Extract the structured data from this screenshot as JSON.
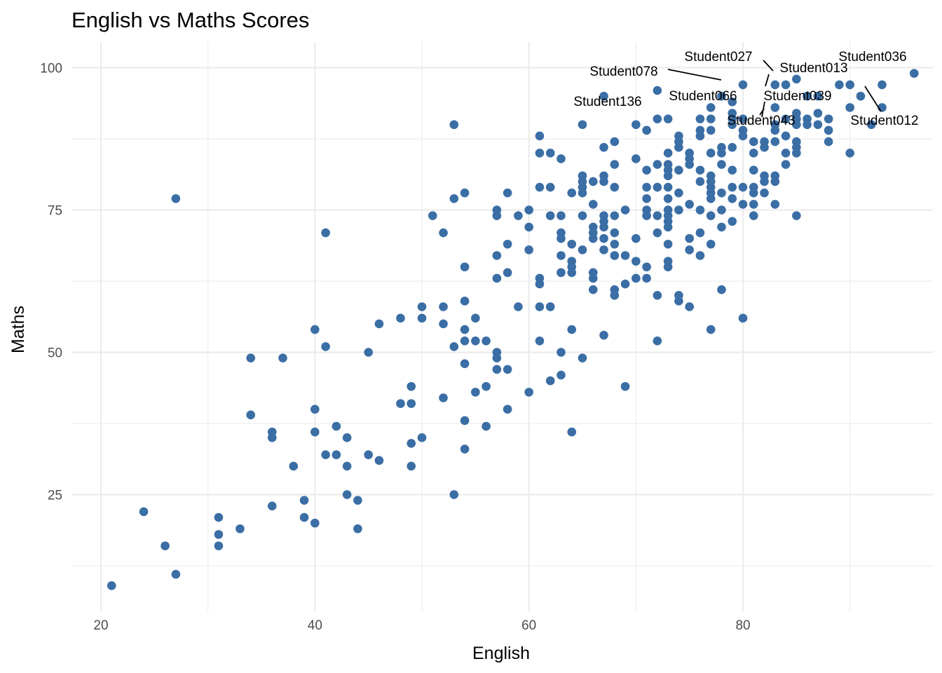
{
  "chart_data": {
    "type": "scatter",
    "title": "English vs Maths Scores",
    "xlabel": "English",
    "ylabel": "Maths",
    "xlim": [
      17.25,
      97.75
    ],
    "ylim": [
      4.5,
      104.5
    ],
    "x_ticks": [
      20,
      40,
      60,
      80
    ],
    "y_ticks": [
      25,
      50,
      75,
      100
    ],
    "grid": true,
    "point_color": "#3A6EA5",
    "points": [
      [
        21,
        9
      ],
      [
        24,
        22
      ],
      [
        26,
        16
      ],
      [
        27,
        77
      ],
      [
        27,
        11
      ],
      [
        31,
        21
      ],
      [
        31,
        18
      ],
      [
        31,
        16
      ],
      [
        33,
        19
      ],
      [
        34,
        49
      ],
      [
        34,
        39
      ],
      [
        36,
        36
      ],
      [
        36,
        35
      ],
      [
        36,
        23
      ],
      [
        37,
        49
      ],
      [
        38,
        30
      ],
      [
        39,
        24
      ],
      [
        39,
        21
      ],
      [
        40,
        54
      ],
      [
        40,
        40
      ],
      [
        40,
        36
      ],
      [
        40,
        20
      ],
      [
        41,
        71
      ],
      [
        41,
        51
      ],
      [
        41,
        32
      ],
      [
        42,
        37
      ],
      [
        42,
        32
      ],
      [
        43,
        35
      ],
      [
        43,
        30
      ],
      [
        43,
        25
      ],
      [
        44,
        24
      ],
      [
        44,
        19
      ],
      [
        45,
        50
      ],
      [
        45,
        32
      ],
      [
        46,
        55
      ],
      [
        46,
        31
      ],
      [
        48,
        56
      ],
      [
        48,
        41
      ],
      [
        49,
        44
      ],
      [
        49,
        41
      ],
      [
        49,
        34
      ],
      [
        49,
        30
      ],
      [
        50,
        58
      ],
      [
        50,
        56
      ],
      [
        50,
        35
      ],
      [
        51,
        74
      ],
      [
        52,
        71
      ],
      [
        52,
        58
      ],
      [
        52,
        55
      ],
      [
        52,
        42
      ],
      [
        53,
        90
      ],
      [
        53,
        77
      ],
      [
        53,
        51
      ],
      [
        53,
        25
      ],
      [
        54,
        78
      ],
      [
        54,
        65
      ],
      [
        54,
        59
      ],
      [
        54,
        54
      ],
      [
        54,
        52
      ],
      [
        54,
        48
      ],
      [
        54,
        38
      ],
      [
        54,
        33
      ],
      [
        55,
        56
      ],
      [
        55,
        52
      ],
      [
        55,
        43
      ],
      [
        56,
        52
      ],
      [
        56,
        44
      ],
      [
        56,
        37
      ],
      [
        57,
        75
      ],
      [
        57,
        74
      ],
      [
        57,
        67
      ],
      [
        57,
        63
      ],
      [
        57,
        50
      ],
      [
        57,
        49
      ],
      [
        57,
        47
      ],
      [
        58,
        78
      ],
      [
        58,
        69
      ],
      [
        58,
        64
      ],
      [
        58,
        47
      ],
      [
        58,
        40
      ],
      [
        59,
        74
      ],
      [
        59,
        58
      ],
      [
        60,
        75
      ],
      [
        60,
        72
      ],
      [
        60,
        68
      ],
      [
        60,
        43
      ],
      [
        61,
        88
      ],
      [
        61,
        85
      ],
      [
        61,
        79
      ],
      [
        61,
        63
      ],
      [
        61,
        62
      ],
      [
        61,
        58
      ],
      [
        61,
        52
      ],
      [
        62,
        85
      ],
      [
        62,
        79
      ],
      [
        62,
        74
      ],
      [
        62,
        58
      ],
      [
        62,
        45
      ],
      [
        63,
        84
      ],
      [
        63,
        74
      ],
      [
        63,
        71
      ],
      [
        63,
        70
      ],
      [
        63,
        67
      ],
      [
        63,
        64
      ],
      [
        63,
        50
      ],
      [
        63,
        46
      ],
      [
        64,
        78
      ],
      [
        64,
        69
      ],
      [
        64,
        66
      ],
      [
        64,
        65
      ],
      [
        64,
        64
      ],
      [
        64,
        54
      ],
      [
        64,
        36
      ],
      [
        65,
        90
      ],
      [
        65,
        81
      ],
      [
        65,
        80
      ],
      [
        65,
        79
      ],
      [
        65,
        78
      ],
      [
        65,
        74
      ],
      [
        65,
        68
      ],
      [
        65,
        49
      ],
      [
        66,
        80
      ],
      [
        66,
        76
      ],
      [
        66,
        72
      ],
      [
        66,
        71
      ],
      [
        66,
        70
      ],
      [
        66,
        64
      ],
      [
        66,
        63
      ],
      [
        66,
        61
      ],
      [
        67,
        95
      ],
      [
        67,
        86
      ],
      [
        67,
        81
      ],
      [
        67,
        80
      ],
      [
        67,
        74
      ],
      [
        67,
        73
      ],
      [
        67,
        72
      ],
      [
        67,
        70
      ],
      [
        67,
        68
      ],
      [
        67,
        53
      ],
      [
        68,
        87
      ],
      [
        68,
        83
      ],
      [
        68,
        79
      ],
      [
        68,
        74
      ],
      [
        68,
        71
      ],
      [
        68,
        69
      ],
      [
        68,
        67
      ],
      [
        68,
        61
      ],
      [
        68,
        60
      ],
      [
        69,
        75
      ],
      [
        69,
        67
      ],
      [
        69,
        62
      ],
      [
        69,
        44
      ],
      [
        70,
        90
      ],
      [
        70,
        84
      ],
      [
        70,
        70
      ],
      [
        70,
        66
      ],
      [
        70,
        63
      ],
      [
        71,
        89
      ],
      [
        71,
        82
      ],
      [
        71,
        79
      ],
      [
        71,
        77
      ],
      [
        71,
        75
      ],
      [
        71,
        74
      ],
      [
        71,
        65
      ],
      [
        71,
        63
      ],
      [
        72,
        96
      ],
      [
        72,
        91
      ],
      [
        72,
        83
      ],
      [
        72,
        79
      ],
      [
        72,
        74
      ],
      [
        72,
        71
      ],
      [
        72,
        60
      ],
      [
        72,
        52
      ],
      [
        73,
        91
      ],
      [
        73,
        85
      ],
      [
        73,
        83
      ],
      [
        73,
        82
      ],
      [
        73,
        81
      ],
      [
        73,
        79
      ],
      [
        73,
        77
      ],
      [
        73,
        75
      ],
      [
        73,
        74
      ],
      [
        73,
        73
      ],
      [
        73,
        72
      ],
      [
        73,
        69
      ],
      [
        73,
        66
      ],
      [
        73,
        65
      ],
      [
        74,
        88
      ],
      [
        74,
        87
      ],
      [
        74,
        86
      ],
      [
        74,
        82
      ],
      [
        74,
        78
      ],
      [
        74,
        75
      ],
      [
        74,
        60
      ],
      [
        74,
        59
      ],
      [
        75,
        85
      ],
      [
        75,
        84
      ],
      [
        75,
        83
      ],
      [
        75,
        76
      ],
      [
        75,
        70
      ],
      [
        75,
        68
      ],
      [
        75,
        58
      ],
      [
        76,
        91
      ],
      [
        76,
        89
      ],
      [
        76,
        88
      ],
      [
        76,
        82
      ],
      [
        76,
        80
      ],
      [
        76,
        75
      ],
      [
        76,
        71
      ],
      [
        76,
        67
      ],
      [
        77,
        93
      ],
      [
        77,
        91
      ],
      [
        77,
        89
      ],
      [
        77,
        85
      ],
      [
        77,
        81
      ],
      [
        77,
        80
      ],
      [
        77,
        79
      ],
      [
        77,
        78
      ],
      [
        77,
        77
      ],
      [
        77,
        74
      ],
      [
        77,
        69
      ],
      [
        77,
        54
      ],
      [
        78,
        95
      ],
      [
        78,
        86
      ],
      [
        78,
        85
      ],
      [
        78,
        83
      ],
      [
        78,
        78
      ],
      [
        78,
        75
      ],
      [
        78,
        72
      ],
      [
        78,
        61
      ],
      [
        79,
        94
      ],
      [
        79,
        92
      ],
      [
        79,
        91
      ],
      [
        79,
        90
      ],
      [
        79,
        86
      ],
      [
        79,
        82
      ],
      [
        79,
        79
      ],
      [
        79,
        77
      ],
      [
        79,
        73
      ],
      [
        80,
        97
      ],
      [
        80,
        91
      ],
      [
        80,
        89
      ],
      [
        80,
        88
      ],
      [
        80,
        79
      ],
      [
        80,
        76
      ],
      [
        80,
        56
      ],
      [
        81,
        87
      ],
      [
        81,
        85
      ],
      [
        81,
        82
      ],
      [
        81,
        79
      ],
      [
        81,
        78
      ],
      [
        81,
        76
      ],
      [
        81,
        74
      ],
      [
        82,
        87
      ],
      [
        82,
        86
      ],
      [
        82,
        81
      ],
      [
        82,
        80
      ],
      [
        82,
        78
      ],
      [
        83,
        97
      ],
      [
        83,
        93
      ],
      [
        83,
        90
      ],
      [
        83,
        89
      ],
      [
        83,
        87
      ],
      [
        83,
        81
      ],
      [
        83,
        80
      ],
      [
        83,
        76
      ],
      [
        84,
        97
      ],
      [
        84,
        91
      ],
      [
        84,
        88
      ],
      [
        84,
        85
      ],
      [
        84,
        83
      ],
      [
        85,
        98
      ],
      [
        85,
        92
      ],
      [
        85,
        91
      ],
      [
        85,
        90
      ],
      [
        85,
        87
      ],
      [
        85,
        86
      ],
      [
        85,
        85
      ],
      [
        85,
        74
      ],
      [
        86,
        95
      ],
      [
        86,
        91
      ],
      [
        86,
        90
      ],
      [
        87,
        95
      ],
      [
        87,
        92
      ],
      [
        87,
        90
      ],
      [
        88,
        91
      ],
      [
        88,
        89
      ],
      [
        88,
        87
      ],
      [
        89,
        97
      ],
      [
        90,
        97
      ],
      [
        90,
        93
      ],
      [
        90,
        85
      ],
      [
        91,
        95
      ],
      [
        92,
        90
      ],
      [
        93,
        97
      ],
      [
        93,
        93
      ],
      [
        96,
        99
      ]
    ],
    "annotations": [
      {
        "label": "Student027",
        "x": 85,
        "y": 98
      },
      {
        "label": "Student036",
        "x": 96,
        "y": 99
      },
      {
        "label": "Student013",
        "x": 84,
        "y": 97
      },
      {
        "label": "Student078",
        "x": 80,
        "y": 97
      },
      {
        "label": "Student136",
        "x": 67,
        "y": 95
      },
      {
        "label": "Student066",
        "x": 79,
        "y": 94
      },
      {
        "label": "Student039",
        "x": 85,
        "y": 92
      },
      {
        "label": "Student043",
        "x": 83,
        "y": 91
      },
      {
        "label": "Student012",
        "x": 93,
        "y": 97
      }
    ]
  }
}
